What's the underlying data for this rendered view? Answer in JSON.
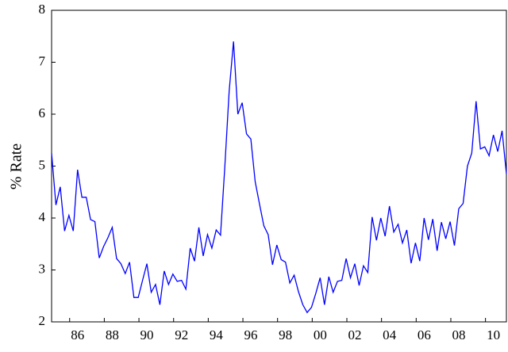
{
  "chart_data": {
    "type": "line",
    "y_label": "% Rate",
    "categories": [
      null,
      null,
      null,
      null,
      null,
      null,
      "86",
      null,
      null,
      null,
      null,
      null,
      null,
      null,
      "88",
      null,
      null,
      null,
      null,
      null,
      null,
      null,
      "90",
      null,
      null,
      null,
      null,
      null,
      null,
      null,
      "92",
      null,
      null,
      null,
      null,
      null,
      null,
      null,
      "94",
      null,
      null,
      null,
      null,
      null,
      null,
      null,
      "96",
      null,
      null,
      null,
      null,
      null,
      null,
      null,
      "98",
      null,
      null,
      null,
      null,
      null,
      null,
      null,
      "00",
      null,
      null,
      null,
      null,
      null,
      null,
      null,
      "02",
      null,
      null,
      null,
      null,
      null,
      null,
      null,
      "04",
      null,
      null,
      null,
      null,
      null,
      null,
      null,
      "06",
      null,
      null,
      null,
      null,
      null,
      null,
      null,
      "08",
      null,
      null,
      null,
      null,
      null,
      null,
      null,
      "10",
      null,
      null,
      null
    ],
    "values": [
      5.25,
      4.25,
      4.6,
      3.75,
      4.05,
      3.75,
      4.93,
      4.4,
      4.4,
      3.97,
      3.93,
      3.23,
      3.45,
      3.62,
      3.82,
      3.22,
      3.12,
      2.93,
      3.15,
      2.47,
      2.47,
      2.8,
      3.12,
      2.57,
      2.72,
      2.33,
      2.98,
      2.72,
      2.92,
      2.78,
      2.8,
      2.63,
      3.42,
      3.17,
      3.82,
      3.27,
      3.68,
      3.42,
      3.77,
      3.67,
      5.0,
      6.45,
      7.4,
      6.0,
      6.22,
      5.62,
      5.52,
      4.7,
      4.27,
      3.85,
      3.68,
      3.1,
      3.48,
      3.2,
      3.15,
      2.75,
      2.9,
      2.58,
      2.33,
      2.18,
      2.28,
      2.55,
      2.85,
      2.33,
      2.87,
      2.57,
      2.78,
      2.8,
      3.22,
      2.85,
      3.12,
      2.7,
      3.08,
      2.95,
      4.02,
      3.57,
      4.0,
      3.65,
      4.23,
      3.73,
      3.88,
      3.52,
      3.77,
      3.13,
      3.52,
      3.17,
      4.0,
      3.58,
      3.98,
      3.37,
      3.92,
      3.6,
      3.93,
      3.47,
      4.18,
      4.28,
      5.0,
      5.25,
      6.25,
      5.33,
      5.37,
      5.2,
      5.6,
      5.28,
      5.68,
      4.85
    ],
    "color": "#0000ff",
    "ylim": [
      2,
      8
    ],
    "yticks": [
      2,
      3,
      4,
      5,
      6,
      7,
      8
    ]
  }
}
